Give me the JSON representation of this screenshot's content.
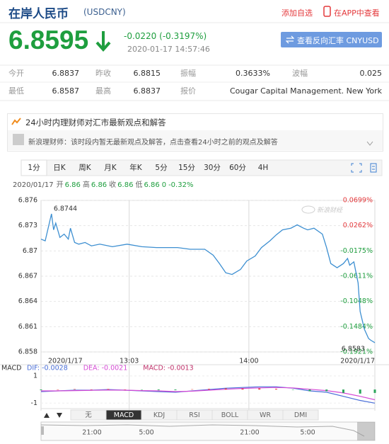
{
  "header": {
    "title": "在岸人民币",
    "symbol": "(USDCNY)",
    "add_watchlist": "添加自选",
    "app_view": "在APP中查看"
  },
  "quote": {
    "price": "6.8595",
    "change": "-0.0220",
    "change_pct": "(-0.3197%)",
    "time": "2020-01-17 14:57:46",
    "reverse_button": "查看反向汇率 CNYUSD"
  },
  "stats": {
    "rows": [
      [
        [
          "今开",
          "6.8837"
        ],
        [
          "昨收",
          "6.8815"
        ],
        [
          "振幅",
          "0.3633%"
        ],
        [
          "波幅",
          "0.025"
        ]
      ],
      [
        [
          "最低",
          "6.8587"
        ],
        [
          "最高",
          "6.8837"
        ],
        [
          "报价",
          "Cougar Capital Management. New York"
        ]
      ]
    ]
  },
  "news": {
    "heading": "24小时内理财师对汇市最新观点和解答",
    "message": "新浪理财师：该时段内暂无最新观点及解答，点击查看24小时之前的观点及解答"
  },
  "period_tabs": [
    "1分",
    "日K",
    "周K",
    "月K",
    "年K",
    "5分",
    "15分",
    "30分",
    "60分",
    "4H"
  ],
  "active_period_index": 0,
  "bar_info": {
    "date": "2020/01/17",
    "items": [
      [
        "开",
        "6.86"
      ],
      [
        "高",
        "6.86"
      ],
      [
        "收",
        "6.86"
      ],
      [
        "低",
        "6.86"
      ]
    ],
    "volume": "0",
    "change_pct": "-0.32%"
  },
  "watermark": "新浪财经",
  "chart_data": [
    {
      "type": "line",
      "color": "#3d8fd1",
      "grid": true,
      "x": [
        741,
        743,
        746,
        747,
        748,
        750,
        752,
        754,
        755,
        757,
        759,
        762,
        765,
        769,
        775,
        782,
        789,
        796,
        806,
        812,
        819,
        823,
        826,
        829,
        832,
        836,
        839,
        843,
        846,
        850,
        853,
        856,
        860,
        863,
        866,
        868,
        871,
        875,
        877,
        879,
        882,
        885,
        887,
        888,
        890,
        892,
        893,
        895,
        897,
        898,
        900
      ],
      "values": [
        6.8714,
        6.8712,
        6.8744,
        6.8725,
        6.8733,
        6.8716,
        6.872,
        6.8714,
        6.8727,
        6.871,
        6.8708,
        6.871,
        6.8706,
        6.8708,
        6.8705,
        6.8708,
        6.8705,
        6.8704,
        6.8704,
        6.8702,
        6.8702,
        6.8695,
        6.8685,
        6.8674,
        6.8672,
        6.8678,
        6.8688,
        6.8694,
        6.8704,
        6.8712,
        6.8719,
        6.8725,
        6.8727,
        6.8731,
        6.8727,
        6.8725,
        6.8727,
        6.872,
        6.8704,
        6.8685,
        6.868,
        6.8685,
        6.8691,
        6.8683,
        6.8687,
        6.8662,
        6.8628,
        6.8607,
        6.8596,
        6.8594,
        6.8591
      ],
      "annotations": [
        "6.8744",
        "6.8583"
      ],
      "xlim": [
        741,
        900
      ],
      "xticks": [
        {
          "value": 741,
          "label": "2020/1/17"
        },
        {
          "value": 783,
          "label": "13:03"
        },
        {
          "value": 840,
          "label": "14:00"
        },
        {
          "value": 900,
          "label": "2020/1/17"
        }
      ],
      "ylim": [
        6.858,
        6.876
      ],
      "yticks": [
        6.876,
        6.873,
        6.87,
        6.867,
        6.864,
        6.861,
        6.858
      ],
      "y2lim": [
        -0.1921,
        0.0699
      ],
      "y2ticks": [
        {
          "value": 0.0699,
          "label": "0.0699%"
        },
        {
          "value": 0.0262,
          "label": "0.0262%"
        },
        {
          "value": -0.0175,
          "label": "-0.0175%"
        },
        {
          "value": -0.0611,
          "label": "-0.0611%"
        },
        {
          "value": -0.1048,
          "label": "-0.1048%"
        },
        {
          "value": -0.1484,
          "label": "-0.1484%"
        },
        {
          "value": -0.1921,
          "label": "-0.1921%"
        }
      ],
      "up_color": "#e4393c",
      "down_color": "#1e9e3e"
    },
    {
      "type": "macd",
      "title": "MACD",
      "legend": [
        "DIF: -0.0028",
        "DEA: -0.0021",
        "MACD: -0.0013"
      ],
      "x": [
        741,
        749,
        757,
        765,
        773,
        781,
        789,
        797,
        805,
        813,
        821,
        829,
        837,
        845,
        853,
        861,
        869,
        877,
        885,
        893,
        900
      ],
      "series": [
        {
          "color": "#4a6fd8",
          "values": [
            -0.15,
            -0.1,
            -0.05,
            -0.05,
            0,
            -0.05,
            -0.1,
            -0.15,
            -0.2,
            -0.1,
            0,
            0.1,
            0.15,
            0.2,
            0.2,
            0.1,
            -0.1,
            -0.2,
            -0.5,
            -0.8,
            -1.0
          ]
        },
        {
          "color": "#d64bd6",
          "values": [
            -0.1,
            -0.1,
            -0.08,
            -0.06,
            -0.04,
            -0.05,
            -0.08,
            -0.1,
            -0.15,
            -0.12,
            -0.05,
            0.02,
            0.08,
            0.12,
            0.15,
            0.12,
            0.02,
            -0.08,
            -0.25,
            -0.5,
            -0.75
          ]
        },
        {
          "color": "#c0306a",
          "style": "bar",
          "up_color": "#e4393c",
          "down_color": "#2aa55a",
          "values": [
            -0.05,
            0,
            0.03,
            0.01,
            0.04,
            0,
            -0.02,
            -0.05,
            -0.05,
            0.02,
            0.05,
            0.08,
            0.07,
            0.08,
            0.05,
            -0.02,
            -0.12,
            -0.12,
            -0.25,
            -0.3,
            -0.25
          ]
        }
      ],
      "xlim": [
        741,
        900
      ],
      "ylim": [
        -1.4,
        1.2
      ],
      "yticks": [
        1,
        -1
      ]
    }
  ],
  "indicator_tabs": [
    "无",
    "MACD",
    "KDJ",
    "RSI",
    "BOLL",
    "WR",
    "DMI"
  ],
  "active_indicator_index": 1,
  "navigator": {
    "labels": [
      "21:00",
      "5:00",
      "21:00",
      "5:00"
    ]
  }
}
